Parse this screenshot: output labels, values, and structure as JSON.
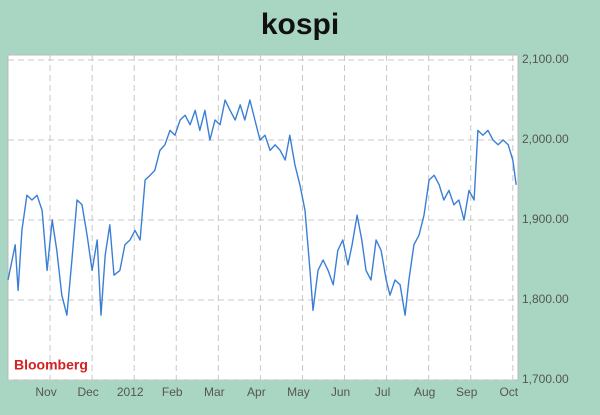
{
  "chart_data": {
    "type": "line",
    "title": "kospi",
    "source": "Bloomberg",
    "x": [
      0,
      0.17,
      0.24,
      0.33,
      0.45,
      0.57,
      0.69,
      0.81,
      0.93,
      1.05,
      1.16,
      1.28,
      1.4,
      1.52,
      1.64,
      1.76,
      1.88,
      2.0,
      2.12,
      2.21,
      2.31,
      2.42,
      2.52,
      2.66,
      2.78,
      2.9,
      3.02,
      3.14,
      3.26,
      3.38,
      3.49,
      3.61,
      3.73,
      3.85,
      3.97,
      4.09,
      4.21,
      4.33,
      4.45,
      4.56,
      4.68,
      4.8,
      4.92,
      5.04,
      5.16,
      5.28,
      5.4,
      5.52,
      5.63,
      5.75,
      5.87,
      5.99,
      6.11,
      6.23,
      6.35,
      6.47,
      6.59,
      6.7,
      6.82,
      6.94,
      7.06,
      7.18,
      7.25,
      7.37,
      7.49,
      7.61,
      7.73,
      7.84,
      7.96,
      8.08,
      8.18,
      8.3,
      8.41,
      8.51,
      8.63,
      8.75,
      8.87,
      8.99,
      9.08,
      9.2,
      9.32,
      9.44,
      9.53,
      9.65,
      9.77,
      9.89,
      10.01,
      10.13,
      10.25,
      10.36,
      10.48,
      10.6,
      10.72,
      10.84,
      10.96,
      11.08,
      11.17,
      11.29,
      11.41,
      11.53,
      11.65,
      11.77,
      11.89,
      12.0,
      12.08
    ],
    "series": [
      {
        "name": "KOSPI",
        "color": "#3a7fd5",
        "values": [
          1825,
          1869,
          1812,
          1887,
          1931,
          1925,
          1931,
          1912,
          1837,
          1900,
          1862,
          1806,
          1781,
          1850,
          1925,
          1919,
          1881,
          1837,
          1875,
          1781,
          1856,
          1894,
          1831,
          1837,
          1869,
          1875,
          1887,
          1875,
          1950,
          1956,
          1962,
          1987,
          1994,
          2012,
          2006,
          2025,
          2031,
          2019,
          2037,
          2012,
          2037,
          2000,
          2025,
          2019,
          2050,
          2037,
          2025,
          2044,
          2025,
          2050,
          2025,
          2000,
          2006,
          1987,
          1994,
          1987,
          1975,
          2006,
          1969,
          1944,
          1912,
          1837,
          1787,
          1837,
          1850,
          1837,
          1819,
          1862,
          1875,
          1844,
          1869,
          1906,
          1875,
          1837,
          1825,
          1875,
          1862,
          1825,
          1806,
          1825,
          1819,
          1781,
          1825,
          1869,
          1881,
          1906,
          1950,
          1956,
          1944,
          1925,
          1937,
          1919,
          1925,
          1900,
          1937,
          1925,
          2012,
          2006,
          2012,
          2000,
          1994,
          2000,
          1994,
          1975,
          1944
        ]
      }
    ],
    "xlim": [
      0,
      12.1
    ],
    "xticks": [
      {
        "value": 1,
        "label": "Nov"
      },
      {
        "value": 2,
        "label": "Dec"
      },
      {
        "value": 3,
        "label": "2012"
      },
      {
        "value": 4,
        "label": "Feb"
      },
      {
        "value": 5,
        "label": "Mar"
      },
      {
        "value": 6,
        "label": "Apr"
      },
      {
        "value": 7,
        "label": "May"
      },
      {
        "value": 8,
        "label": "Jun"
      },
      {
        "value": 9,
        "label": "Jul"
      },
      {
        "value": 10,
        "label": "Aug"
      },
      {
        "value": 11,
        "label": "Sep"
      },
      {
        "value": 12,
        "label": "Oct"
      }
    ],
    "ylim": [
      1700,
      2100
    ],
    "yticks": [
      {
        "value": 1700,
        "label": "1,700.00"
      },
      {
        "value": 1800,
        "label": "1,800.00"
      },
      {
        "value": 1900,
        "label": "1,900.00"
      },
      {
        "value": 2000,
        "label": "2,000.00"
      },
      {
        "value": 2100,
        "label": "2,100.00"
      }
    ],
    "grid": true
  }
}
